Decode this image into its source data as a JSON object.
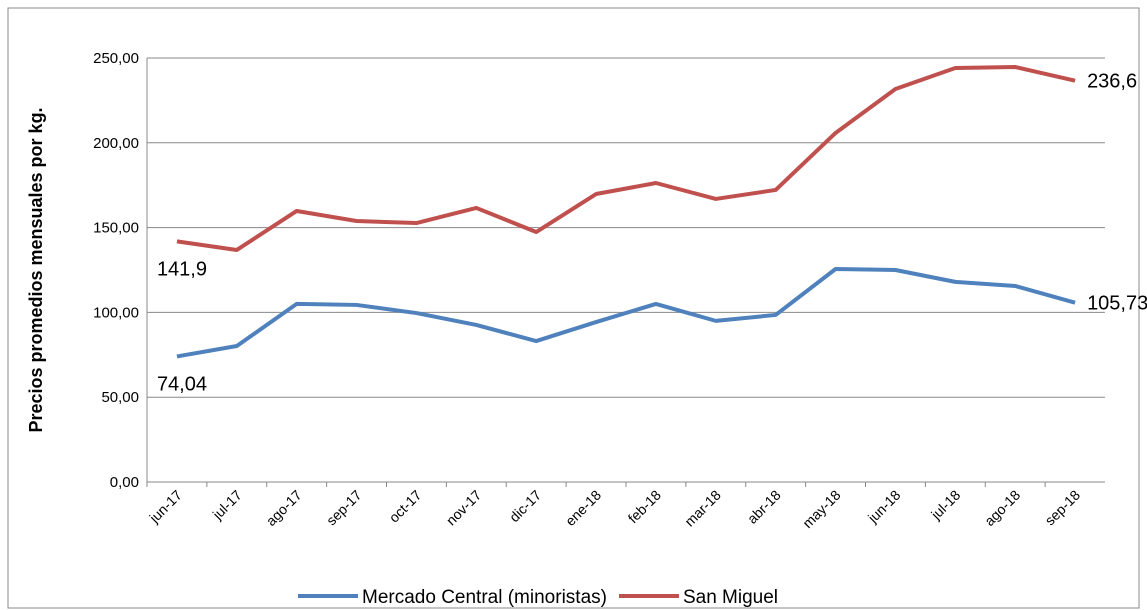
{
  "chart_data": {
    "type": "line",
    "y_label": "Precios promedios mensuales por kg.",
    "categories": [
      "jun-17",
      "jul-17",
      "ago-17",
      "sep-17",
      "oct-17",
      "nov-17",
      "dic-17",
      "ene-18",
      "feb-18",
      "mar-18",
      "abr-18",
      "may-18",
      "jun-18",
      "jul-18",
      "ago-18",
      "sep-18"
    ],
    "series": [
      {
        "name": "Mercado Central (minoristas)",
        "color": "#4f81bd",
        "values": [
          74.04,
          80.2,
          105,
          104.4,
          99.6,
          92.6,
          83.1,
          94.3,
          105,
          95,
          98.5,
          125.6,
          125,
          118,
          115.6,
          105.73
        ],
        "value_labels": [
          "74,04",
          null,
          null,
          null,
          null,
          null,
          null,
          null,
          null,
          null,
          null,
          null,
          null,
          null,
          null,
          "105,73"
        ]
      },
      {
        "name": "San Miguel",
        "color": "#c0504d",
        "values": [
          141.9,
          136.8,
          159.8,
          153.9,
          152.7,
          161.6,
          147.4,
          169.8,
          176.3,
          166.9,
          172.2,
          205.8,
          231.7,
          244.1,
          244.7,
          236.6
        ],
        "value_labels": [
          "141,9",
          null,
          null,
          null,
          null,
          null,
          null,
          null,
          null,
          null,
          null,
          null,
          null,
          null,
          null,
          "236,6"
        ]
      }
    ],
    "ylim": [
      0,
      250
    ],
    "yticks": [
      {
        "value": 0,
        "label": "0,00"
      },
      {
        "value": 50,
        "label": "50,00"
      },
      {
        "value": 100,
        "label": "100,00"
      },
      {
        "value": 150,
        "label": "150,00"
      },
      {
        "value": 200,
        "label": "200,00"
      },
      {
        "value": 250,
        "label": "250,00"
      }
    ],
    "grid": true,
    "legend": "bottom"
  }
}
